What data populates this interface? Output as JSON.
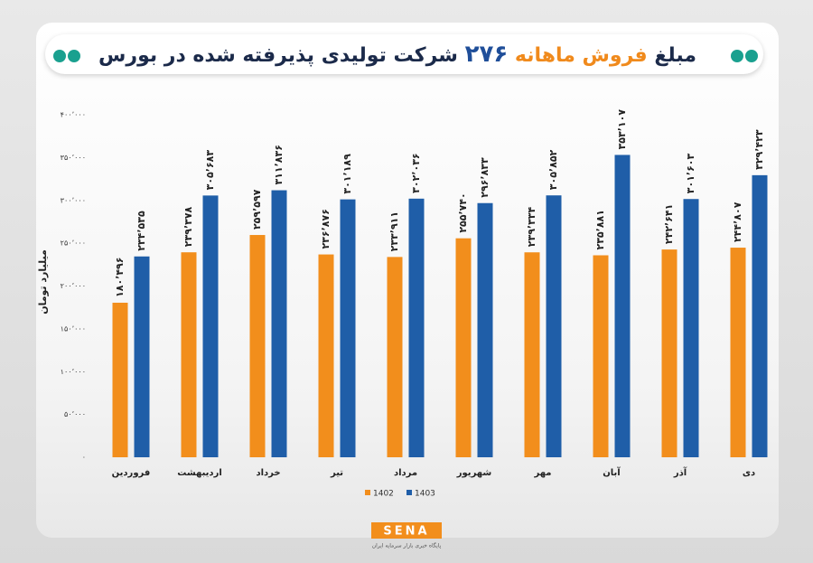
{
  "chart_data": {
    "type": "bar",
    "title_parts": [
      "مبلغ",
      "فروش ماهانه",
      "۲۷۶",
      "شرکت تولیدی پذیرفته شده در بورس"
    ],
    "y_label": "میلیارد تومان",
    "categories": [
      "فروردین",
      "اردیبهشت",
      "خرداد",
      "تیر",
      "مرداد",
      "شهریور",
      "مهر",
      "آبان",
      "آذر",
      "دی"
    ],
    "series": [
      {
        "name": "1402",
        "color": "#f28e1c",
        "values": [
          180496,
          239378,
          259597,
          236876,
          233911,
          255740,
          239334,
          235881,
          242641,
          244807
        ],
        "value_labels": [
          "۱۸۰٬۴۹۶",
          "۲۳۹٬۳۷۸",
          "۲۵۹٬۵۹۷",
          "۲۳۶٬۸۷۶",
          "۲۳۳٬۹۱۱",
          "۲۵۵٬۷۴۰",
          "۲۳۹٬۳۳۴",
          "۲۳۵٬۸۸۱",
          "۲۴۲٬۶۴۱",
          "۲۴۴٬۸۰۷"
        ]
      },
      {
        "name": "1403",
        "color": "#1f5ea8",
        "values": [
          234535,
          305683,
          311836,
          301189,
          302036,
          296833,
          305852,
          353107,
          301603,
          329423
        ],
        "value_labels": [
          "۲۳۴٬۵۳۵",
          "۳۰۵٬۶۸۳",
          "۳۱۱٬۸۳۶",
          "۳۰۱٬۱۸۹",
          "۳۰۲٬۰۳۶",
          "۲۹۶٬۸۳۳",
          "۳۰۵٬۸۵۲",
          "۳۵۳٬۱۰۷",
          "۳۰۱٬۶۰۳",
          "۳۲۹٬۴۲۳"
        ]
      }
    ],
    "ylim": [
      0,
      400000
    ],
    "yticks": [
      {
        "value": 0,
        "label": "۰"
      },
      {
        "value": 50000,
        "label": "۵۰٬۰۰۰"
      },
      {
        "value": 100000,
        "label": "۱۰۰٬۰۰۰"
      },
      {
        "value": 150000,
        "label": "۱۵۰٬۰۰۰"
      },
      {
        "value": 200000,
        "label": "۲۰۰٬۰۰۰"
      },
      {
        "value": 250000,
        "label": "۲۵۰٬۰۰۰"
      },
      {
        "value": 300000,
        "label": "۳۰۰٬۰۰۰"
      },
      {
        "value": 350000,
        "label": "۳۵۰٬۰۰۰"
      },
      {
        "value": 400000,
        "label": "۴۰۰٬۰۰۰"
      }
    ],
    "grid": false,
    "legend": "bottom"
  },
  "footer": {
    "logo": "SENA",
    "tagline": "پایگاه خبری بازار سرمایه ایران"
  }
}
